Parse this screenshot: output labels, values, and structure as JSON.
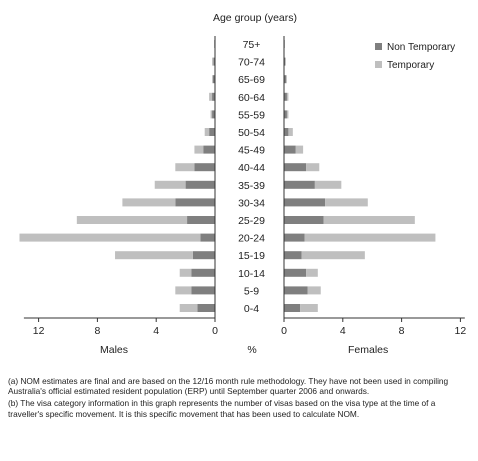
{
  "chart_data": {
    "type": "bar",
    "title": "Age group (years)",
    "xlabel": "%",
    "categories": [
      "75+",
      "70-74",
      "65-69",
      "60-64",
      "55-59",
      "50-54",
      "45-49",
      "40-44",
      "35-39",
      "30-34",
      "25-29",
      "20-24",
      "15-19",
      "10-14",
      "5-9",
      "0-4"
    ],
    "ticks": [
      "12",
      "8",
      "4",
      "0"
    ],
    "xlim": [
      0,
      14
    ],
    "left_panel_label": "Males",
    "right_panel_label": "Females",
    "stacked": true,
    "legend_position": "top-right",
    "series": [
      {
        "name": "Non Temporary",
        "color": "#7f7f7f",
        "males": [
          0.05,
          0.1,
          0.15,
          0.2,
          0.2,
          0.4,
          0.8,
          1.4,
          2.0,
          2.7,
          1.9,
          1.0,
          1.5,
          1.6,
          1.6,
          1.2
        ],
        "females": [
          0.05,
          0.1,
          0.15,
          0.2,
          0.2,
          0.3,
          0.8,
          1.5,
          2.1,
          2.8,
          2.7,
          1.4,
          1.2,
          1.5,
          1.6,
          1.1
        ]
      },
      {
        "name": "Temporary",
        "color": "#bfbfbf",
        "males": [
          0.0,
          0.1,
          0.05,
          0.2,
          0.1,
          0.3,
          0.6,
          1.3,
          2.1,
          3.6,
          7.5,
          12.3,
          5.3,
          0.8,
          1.1,
          1.2
        ],
        "females": [
          0.0,
          0.0,
          0.05,
          0.1,
          0.1,
          0.3,
          0.5,
          0.9,
          1.8,
          2.9,
          6.2,
          8.9,
          4.3,
          0.8,
          0.9,
          1.2
        ]
      }
    ]
  },
  "notes": [
    "(a) NOM estimates are final and are based on the 12/16 month rule methodology. They have not been used in compiling Australia's official estimated resident population (ERP) until September quarter 2006 and onwards.",
    "(b) The visa category information in this graph represents the number of visas based on the visa type at the time of a traveller's specific movement. It is this specific movement that has been used to calculate NOM."
  ]
}
